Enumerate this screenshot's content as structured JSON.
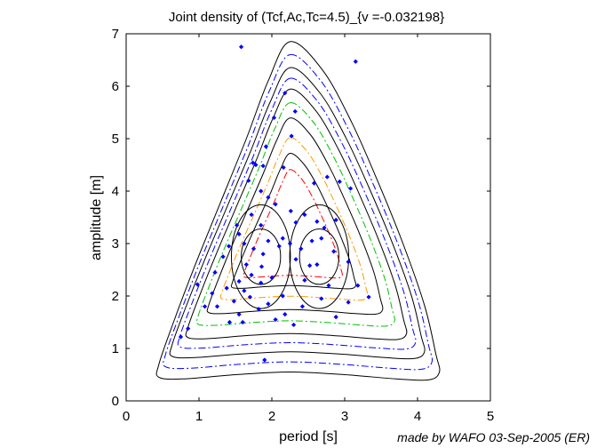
{
  "chart_data": {
    "type": "scatter",
    "title": "Joint density of (Tcf,Ac,Tc=4.5)_{v =-0.032198}",
    "xlabel": "period [s]",
    "ylabel": "amplitude [m]",
    "xlim": [
      0,
      5
    ],
    "ylim": [
      0,
      7
    ],
    "xticks": [
      "0",
      "1",
      "2",
      "3",
      "4",
      "5"
    ],
    "yticks": [
      "0",
      "1",
      "2",
      "3",
      "4",
      "5",
      "6",
      "7"
    ],
    "grid": false,
    "legend": "none",
    "colors": {
      "points": "#0000ff",
      "contour_solid": "#000000",
      "contour_blue": "#0000ff",
      "contour_green": "#00c000",
      "contour_orange": "#ff9900",
      "contour_red": "#ff0000"
    },
    "series": [
      {
        "marker": "point",
        "color": "#0000ff",
        "points": [
          [
            1.58,
            6.75
          ],
          [
            3.15,
            6.47
          ],
          [
            2.18,
            5.87
          ],
          [
            2.32,
            5.52
          ],
          [
            2.03,
            5.4
          ],
          [
            2.27,
            5.05
          ],
          [
            1.92,
            4.85
          ],
          [
            1.74,
            4.54
          ],
          [
            1.78,
            4.5
          ],
          [
            1.68,
            4.2
          ],
          [
            2.76,
            4.27
          ],
          [
            2.93,
            4.18
          ],
          [
            1.85,
            4.0
          ],
          [
            2.58,
            4.15
          ],
          [
            3.08,
            4.05
          ],
          [
            1.95,
            3.88
          ],
          [
            2.05,
            3.75
          ],
          [
            1.72,
            3.55
          ],
          [
            2.26,
            3.62
          ],
          [
            2.45,
            3.55
          ],
          [
            2.88,
            3.45
          ],
          [
            1.52,
            3.35
          ],
          [
            2.33,
            3.4
          ],
          [
            1.85,
            3.35
          ],
          [
            2.72,
            3.3
          ],
          [
            1.55,
            3.18
          ],
          [
            2.15,
            3.1
          ],
          [
            2.25,
            3.0
          ],
          [
            1.62,
            3.0
          ],
          [
            2.55,
            3.05
          ],
          [
            2.68,
            3.1
          ],
          [
            1.41,
            2.95
          ],
          [
            1.75,
            2.9
          ],
          [
            2.85,
            2.85
          ],
          [
            1.88,
            2.8
          ],
          [
            1.33,
            2.75
          ],
          [
            2.33,
            2.7
          ],
          [
            1.65,
            2.6
          ],
          [
            2.62,
            2.6
          ],
          [
            3.05,
            2.65
          ],
          [
            1.22,
            2.45
          ],
          [
            1.72,
            2.4
          ],
          [
            2.0,
            2.35
          ],
          [
            2.45,
            2.3
          ],
          [
            1.85,
            2.25
          ],
          [
            2.78,
            2.2
          ],
          [
            1.62,
            2.1
          ],
          [
            1.38,
            2.15
          ],
          [
            3.18,
            2.2
          ],
          [
            1.18,
            2.05
          ],
          [
            2.15,
            2.0
          ],
          [
            2.68,
            1.95
          ],
          [
            3.33,
            1.98
          ],
          [
            1.48,
            1.9
          ],
          [
            1.95,
            1.85
          ],
          [
            2.42,
            1.8
          ],
          [
            3.05,
            1.88
          ],
          [
            1.25,
            1.8
          ],
          [
            1.82,
            1.75
          ],
          [
            1.55,
            1.65
          ],
          [
            2.18,
            1.65
          ],
          [
            2.88,
            1.6
          ],
          [
            1.42,
            1.5
          ],
          [
            2.3,
            1.45
          ],
          [
            1.08,
            1.8
          ],
          [
            0.98,
            2.22
          ],
          [
            0.85,
            1.38
          ],
          [
            0.75,
            1.22
          ],
          [
            1.6,
            1.5
          ],
          [
            2.05,
            1.55
          ],
          [
            1.86,
            2.56
          ],
          [
            2.4,
            2.9
          ],
          [
            2.1,
            2.95
          ],
          [
            1.95,
            3.05
          ],
          [
            2.62,
            3.42
          ],
          [
            2.52,
            2.58
          ],
          [
            1.55,
            2.28
          ],
          [
            1.7,
            1.98
          ],
          [
            1.88,
            4.48
          ],
          [
            2.16,
            4.45
          ],
          [
            1.9,
            0.78
          ]
        ]
      }
    ]
  },
  "credit": "made by WAFO 03-Sep-2005 (ER)"
}
